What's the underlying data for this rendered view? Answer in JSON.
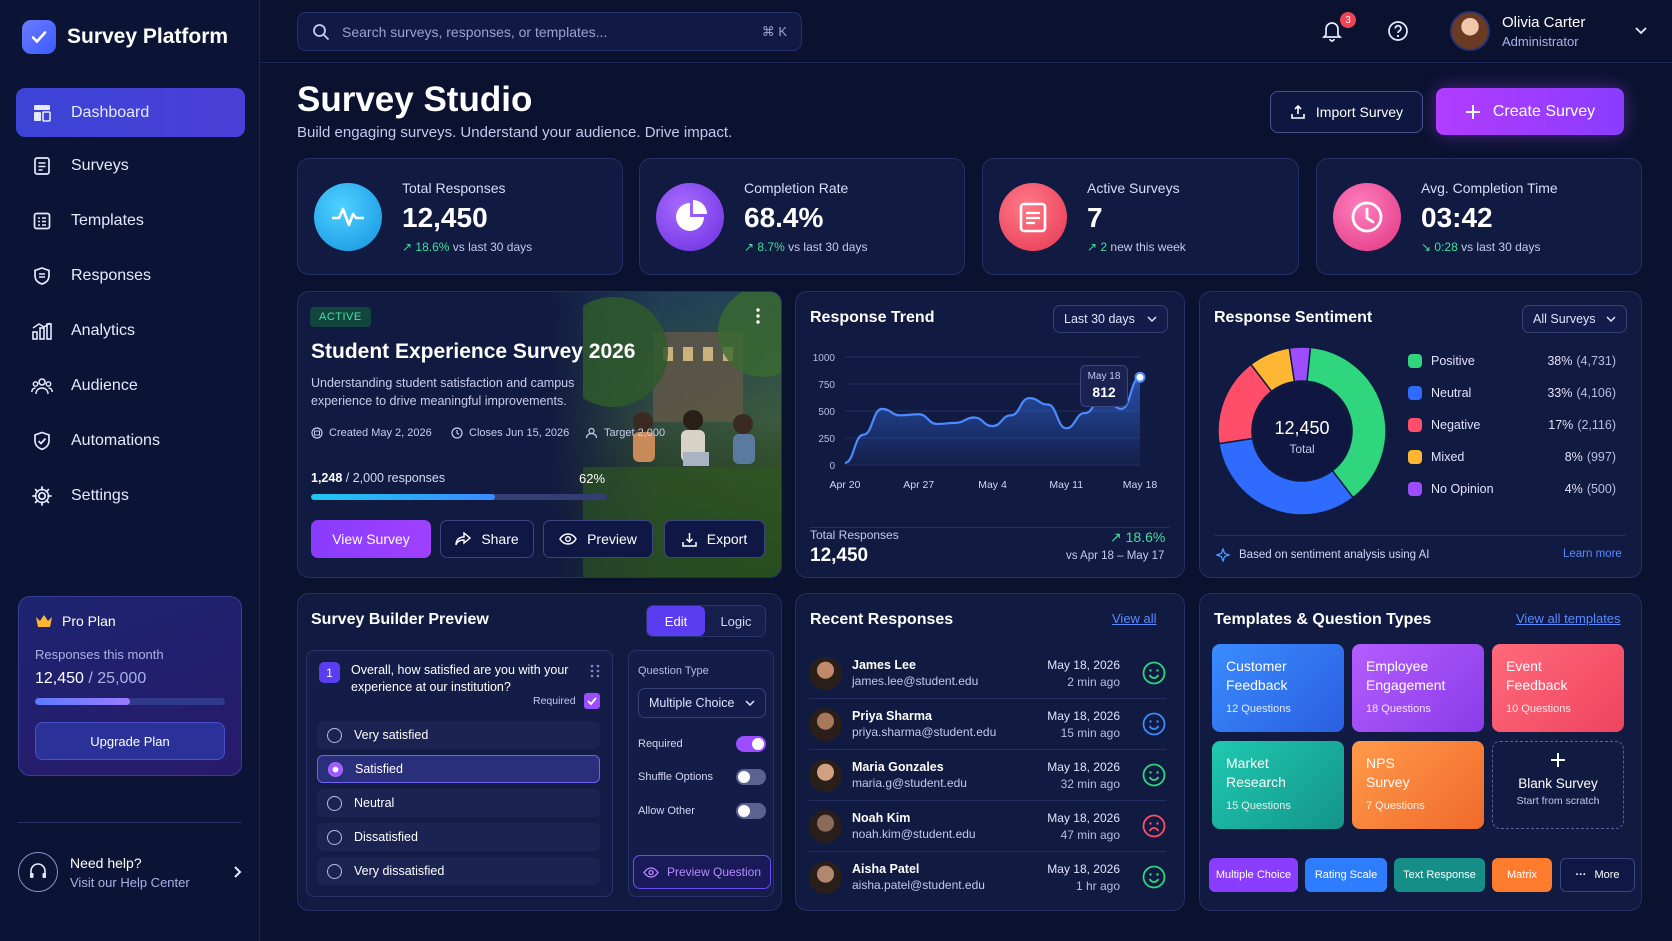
{
  "app": {
    "name": "Survey Platform"
  },
  "sidebar": {
    "items": [
      {
        "label": "Dashboard",
        "icon": "dashboard-icon",
        "active": true
      },
      {
        "label": "Surveys",
        "icon": "surveys-icon"
      },
      {
        "label": "Templates",
        "icon": "templates-icon"
      },
      {
        "label": "Responses",
        "icon": "responses-icon"
      },
      {
        "label": "Analytics",
        "icon": "analytics-icon"
      },
      {
        "label": "Audience",
        "icon": "audience-icon"
      },
      {
        "label": "Automations",
        "icon": "automations-icon"
      },
      {
        "label": "Settings",
        "icon": "settings-icon"
      }
    ],
    "plan": {
      "title": "Pro Plan",
      "usage_label": "Responses this month",
      "used": "12,450",
      "limit": "/ 25,000",
      "usage_fraction": 0.498,
      "button": "Upgrade Plan"
    },
    "help": {
      "title": "Need help?",
      "subtitle": "Visit our Help Center"
    }
  },
  "header": {
    "search_placeholder": "Search surveys, responses, or templates...",
    "shortcut": "⌘ K",
    "notifications": "3",
    "user": {
      "name": "Olivia Carter",
      "role": "Administrator"
    }
  },
  "page": {
    "title": "Survey Studio",
    "subtitle": "Build engaging surveys. Understand your audience. Drive impact.",
    "import_label": "Import Survey",
    "create_label": "Create Survey"
  },
  "stats": [
    {
      "label": "Total Responses",
      "value": "12,450",
      "delta": "18.6%",
      "note": "vs last 30 days",
      "color": "#1fb6f0"
    },
    {
      "label": "Completion Rate",
      "value": "68.4%",
      "delta": "8.7%",
      "note": "vs last 30 days",
      "color": "#8a4dff"
    },
    {
      "label": "Active Surveys",
      "value": "7",
      "delta": "2",
      "note": "new this week",
      "color": "#ff5a6e"
    },
    {
      "label": "Avg. Completion Time",
      "value": "03:42",
      "delta": "0:28",
      "note": "vs last 30 days",
      "color": "#ff4fa3"
    }
  ],
  "featured": {
    "status": "ACTIVE",
    "title": "Student Experience Survey 2026",
    "description": "Understanding student satisfaction and campus experience to drive meaningful improvements.",
    "created": "Created May 2, 2026",
    "closes": "Closes Jun 15, 2026",
    "target": "Target 2,000",
    "responses_done": "1,248",
    "responses_total": "/ 2,000 responses",
    "progress_pct": "62%",
    "progress_fraction": 0.62,
    "actions": {
      "view": "View Survey",
      "share": "Share",
      "preview": "Preview",
      "export": "Export"
    }
  },
  "trend": {
    "title": "Response Trend",
    "range": "Last 30 days",
    "tooltip_date": "May 18",
    "tooltip_value": "812",
    "total_label": "Total Responses",
    "total_value": "12,450",
    "change": "18.6%",
    "change_note": "vs Apr 18 – May 17"
  },
  "chart_data": {
    "type": "area",
    "title": "Response Trend",
    "x": [
      "Apr 20",
      "Apr 22",
      "Apr 24",
      "Apr 26",
      "Apr 27",
      "Apr 29",
      "May 1",
      "May 3",
      "May 4",
      "May 6",
      "May 8",
      "May 10",
      "May 11",
      "May 13",
      "May 15",
      "May 17",
      "May 18"
    ],
    "x_tick_labels": [
      "Apr 20",
      "Apr 27",
      "May 4",
      "May 11",
      "May 18"
    ],
    "y": [
      20,
      280,
      520,
      460,
      470,
      380,
      390,
      440,
      360,
      460,
      620,
      560,
      340,
      480,
      630,
      520,
      812
    ],
    "ylim": [
      0,
      1000
    ],
    "y_ticks": [
      "1000",
      "750",
      "500",
      "250",
      "0"
    ],
    "color": "#3a7bff"
  },
  "sentiment": {
    "title": "Response Sentiment",
    "filter": "All Surveys",
    "center_value": "12,450",
    "center_label": "Total",
    "items": [
      {
        "label": "Positive",
        "pct": "38%",
        "count": "(4,731)",
        "value": 38,
        "color": "#2fd67e"
      },
      {
        "label": "Neutral",
        "pct": "33%",
        "count": "(4,106)",
        "value": 33,
        "color": "#2f6bff"
      },
      {
        "label": "Negative",
        "pct": "17%",
        "count": "(2,116)",
        "value": 17,
        "color": "#ff4d6a"
      },
      {
        "label": "Mixed",
        "pct": "8%",
        "count": "(997)",
        "value": 8,
        "color": "#ffb733"
      },
      {
        "label": "No Opinion",
        "pct": "4%",
        "count": "(500)",
        "value": 4,
        "color": "#9b4dff"
      }
    ],
    "footnote": "Based on sentiment analysis using AI",
    "learn_more": "Learn more"
  },
  "builder": {
    "title": "Survey Builder Preview",
    "tab_edit": "Edit",
    "tab_logic": "Logic",
    "question_number": "1",
    "question": "Overall, how satisfied are you with your experience at our institution?",
    "required_label": "Required",
    "options": [
      "Very satisfied",
      "Satisfied",
      "Neutral",
      "Dissatisfied",
      "Very dissatisfied"
    ],
    "selected_option": "Satisfied",
    "type_label": "Question Type",
    "type_value": "Multiple Choice",
    "toggles": [
      {
        "label": "Required",
        "on": true
      },
      {
        "label": "Shuffle Options",
        "on": false
      },
      {
        "label": "Allow Other",
        "on": false
      }
    ],
    "preview_button": "Preview Question"
  },
  "recent": {
    "title": "Recent Responses",
    "view_all": "View all",
    "items": [
      {
        "name": "James Lee",
        "email": "james.lee@student.edu",
        "date": "May 18, 2026",
        "ago": "2 min ago",
        "mood": "happy"
      },
      {
        "name": "Priya Sharma",
        "email": "priya.sharma@student.edu",
        "date": "May 18, 2026",
        "ago": "15 min ago",
        "mood": "happy"
      },
      {
        "name": "Maria Gonzales",
        "email": "maria.g@student.edu",
        "date": "May 18, 2026",
        "ago": "32 min ago",
        "mood": "happy"
      },
      {
        "name": "Noah Kim",
        "email": "noah.kim@student.edu",
        "date": "May 18, 2026",
        "ago": "47 min ago",
        "mood": "sad"
      },
      {
        "name": "Aisha Patel",
        "email": "aisha.patel@student.edu",
        "date": "May 18, 2026",
        "ago": "1 hr ago",
        "mood": "happy"
      }
    ]
  },
  "templates": {
    "title": "Templates & Question Types",
    "view_all": "View all templates",
    "cards": [
      {
        "line1": "Customer",
        "line2": "Feedback",
        "count": "12 Questions",
        "color": "#2f7dff"
      },
      {
        "line1": "Employee",
        "line2": "Engagement",
        "count": "18 Questions",
        "color": "#a04dff"
      },
      {
        "line1": "Event",
        "line2": "Feedback",
        "count": "10 Questions",
        "color": "#ff5a6e"
      },
      {
        "line1": "Market",
        "line2": "Research",
        "count": "15 Questions",
        "color": "#17b8a0"
      },
      {
        "line1": "NPS",
        "line2": "Survey",
        "count": "7 Questions",
        "color": "#ff8a3c"
      }
    ],
    "blank": {
      "title": "Blank Survey",
      "subtitle": "Start from scratch"
    },
    "chips": [
      {
        "label": "Multiple Choice",
        "color": "#8a3cff"
      },
      {
        "label": "Rating Scale",
        "color": "#2f7dff"
      },
      {
        "label": "Text Response",
        "color": "#148e86"
      },
      {
        "label": "Matrix",
        "color": "#ff7b2e"
      }
    ],
    "more": "More"
  }
}
